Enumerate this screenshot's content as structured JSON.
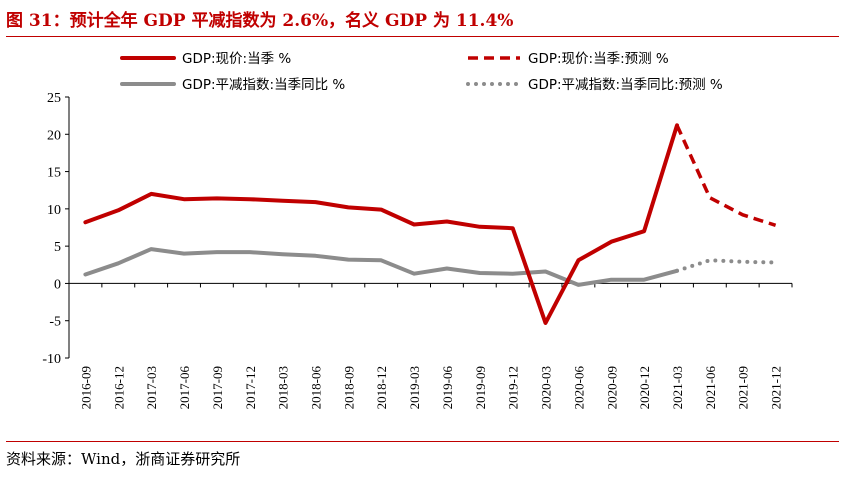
{
  "figure": {
    "title": "图 31：预计全年 GDP 平减指数为 2.6%，名义 GDP 为 11.4%",
    "source": "资料来源：Wind，浙商证券研究所"
  },
  "colors": {
    "red": "#c00000",
    "gray": "#8c8c8c",
    "rule": "#c00000"
  },
  "chart_data": {
    "type": "line",
    "title": "",
    "xlabel": "",
    "ylabel": "",
    "ylim": [
      -10,
      25
    ],
    "yticks": [
      25,
      20,
      15,
      10,
      5,
      0,
      -5,
      -10
    ],
    "categories": [
      "2016-09",
      "2016-12",
      "2017-03",
      "2017-06",
      "2017-09",
      "2017-12",
      "2018-03",
      "2018-06",
      "2018-09",
      "2018-12",
      "2019-03",
      "2019-06",
      "2019-09",
      "2019-12",
      "2020-03",
      "2020-06",
      "2020-09",
      "2020-12",
      "2021-03",
      "2021-06",
      "2021-09",
      "2021-12"
    ],
    "legend_position": "top",
    "series": [
      {
        "name": "GDP:现价:当季 %",
        "color": "#c00000",
        "style": "solid",
        "values": [
          8.2,
          9.8,
          12.0,
          11.3,
          11.4,
          11.3,
          11.1,
          10.9,
          10.2,
          9.9,
          7.9,
          8.3,
          7.6,
          7.4,
          -5.3,
          3.1,
          5.6,
          7.0,
          21.2,
          null,
          null,
          null
        ]
      },
      {
        "name": "GDP:现价:当季:预测 %",
        "color": "#c00000",
        "style": "dashed",
        "values": [
          null,
          null,
          null,
          null,
          null,
          null,
          null,
          null,
          null,
          null,
          null,
          null,
          null,
          null,
          null,
          null,
          null,
          null,
          21.2,
          11.5,
          9.2,
          7.8
        ]
      },
      {
        "name": "GDP:平减指数:当季同比 %",
        "color": "#8c8c8c",
        "style": "solid",
        "values": [
          1.2,
          2.7,
          4.6,
          4.0,
          4.2,
          4.2,
          3.9,
          3.7,
          3.2,
          3.1,
          1.3,
          2.0,
          1.4,
          1.3,
          1.6,
          -0.2,
          0.5,
          0.5,
          1.7,
          null,
          null,
          null
        ]
      },
      {
        "name": "GDP:平减指数:当季同比:预测 %",
        "color": "#8c8c8c",
        "style": "dotted",
        "values": [
          null,
          null,
          null,
          null,
          null,
          null,
          null,
          null,
          null,
          null,
          null,
          null,
          null,
          null,
          null,
          null,
          null,
          null,
          1.7,
          3.1,
          2.9,
          2.8
        ]
      }
    ]
  }
}
